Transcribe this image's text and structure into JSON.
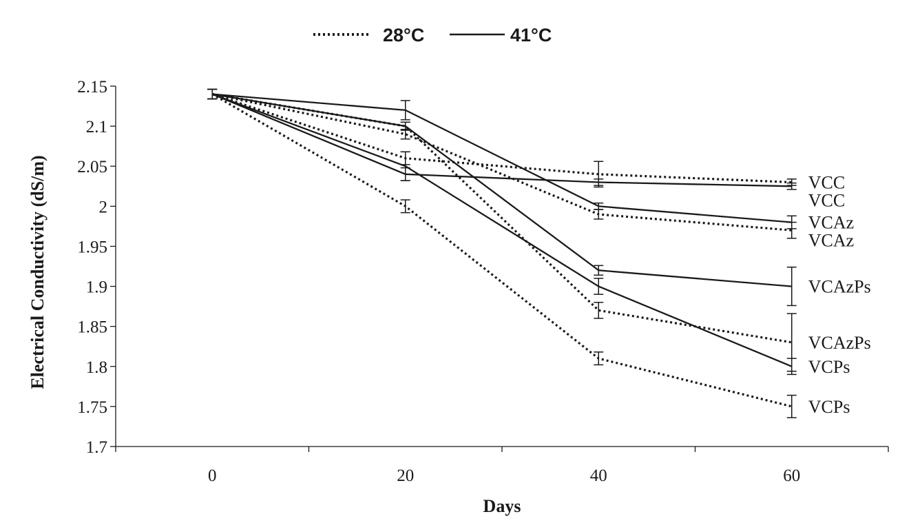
{
  "chart_data": {
    "type": "line",
    "xlabel": "Days",
    "ylabel": "Electrical Conductivity (dS/m)",
    "x": [
      0,
      20,
      40,
      60
    ],
    "x_tick_labels": [
      "0",
      "20",
      "40",
      "60"
    ],
    "xlim": [
      -10,
      70
    ],
    "ylim": [
      1.7,
      2.15
    ],
    "y_ticks": [
      1.7,
      1.75,
      1.8,
      1.85,
      1.9,
      1.95,
      2.0,
      2.05,
      2.1,
      2.15
    ],
    "y_tick_labels": [
      "1.7",
      "1.75",
      "1.8",
      "1.85",
      "1.9",
      "1.95",
      "2",
      "2.05",
      "2.1",
      "2.15"
    ],
    "grid": false,
    "legend": {
      "placement": "top-center",
      "entries": [
        {
          "label": "28°C",
          "style": "dotted"
        },
        {
          "label": "41°C",
          "style": "solid"
        }
      ]
    },
    "series": [
      {
        "name": "VCC",
        "temperature": "28°C",
        "style": "dotted",
        "values": [
          2.14,
          2.06,
          2.04,
          2.03
        ],
        "errors": [
          0.006,
          0.008,
          0.016,
          0.004
        ]
      },
      {
        "name": "VCAz",
        "temperature": "28°C",
        "style": "dotted",
        "values": [
          2.14,
          2.09,
          1.99,
          1.97
        ],
        "errors": [
          0.006,
          0.006,
          0.006,
          0.01
        ]
      },
      {
        "name": "VCAzPs",
        "temperature": "28°C",
        "style": "dotted",
        "values": [
          2.14,
          2.1,
          1.87,
          1.83
        ],
        "errors": [
          0.006,
          0.005,
          0.01,
          0.036
        ]
      },
      {
        "name": "VCPs",
        "temperature": "28°C",
        "style": "dotted",
        "values": [
          2.14,
          2.0,
          1.81,
          1.75
        ],
        "errors": [
          0.006,
          0.008,
          0.008,
          0.014
        ]
      },
      {
        "name": "VCC",
        "temperature": "41°C",
        "style": "solid",
        "values": [
          2.14,
          2.04,
          2.03,
          2.025
        ],
        "errors": [
          0.006,
          0.008,
          0.004,
          0.004
        ]
      },
      {
        "name": "VCAz",
        "temperature": "41°C",
        "style": "solid",
        "values": [
          2.14,
          2.12,
          2.0,
          1.98
        ],
        "errors": [
          0.006,
          0.012,
          0.004,
          0.008
        ]
      },
      {
        "name": "VCAzPs",
        "temperature": "41°C",
        "style": "solid",
        "values": [
          2.14,
          2.1,
          1.92,
          1.9
        ],
        "errors": [
          0.006,
          0.005,
          0.006,
          0.024
        ]
      },
      {
        "name": "VCPs",
        "temperature": "41°C",
        "style": "solid",
        "values": [
          2.14,
          2.05,
          1.9,
          1.8
        ],
        "errors": [
          0.006,
          0.018,
          0.01,
          0.01
        ]
      }
    ]
  },
  "colors": {
    "line": "#1a1a1a",
    "background": "#ffffff"
  }
}
